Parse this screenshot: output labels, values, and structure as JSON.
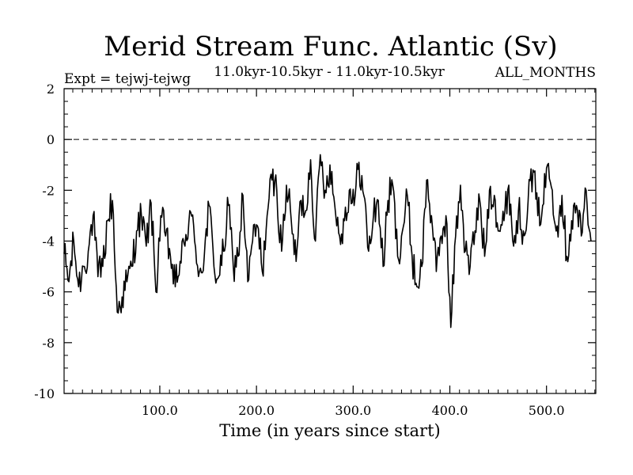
{
  "chart_data": {
    "type": "line",
    "title": "Merid Stream Func. Atlantic (Sv)",
    "subtitle": "11.0kyr-10.5kyr - 11.0kyr-10.5kyr",
    "left_label": "Expt = tejwj-tejwg",
    "right_label": "ALL_MONTHS",
    "xlabel": "Time (in years since start)",
    "ylabel": "",
    "xlim": [
      1,
      551
    ],
    "ylim": [
      -10,
      2
    ],
    "xticks": [
      100,
      200,
      300,
      400,
      500
    ],
    "xtick_labels": [
      "100.0",
      "200.0",
      "300.0",
      "400.0",
      "500.0"
    ],
    "yticks": [
      -10,
      -8,
      -6,
      -4,
      -2,
      0,
      2
    ],
    "ytick_labels": [
      "-10",
      "-8",
      "-6",
      "-4",
      "-2",
      "0",
      "2"
    ],
    "zero_line": 0,
    "series": [
      {
        "name": "tejwj-tejwg",
        "color": "#000000",
        "x_start": 1,
        "x_step": 5,
        "values": [
          -4.5,
          -5.6,
          -4.0,
          -5.8,
          -5.0,
          -4.4,
          -3.0,
          -5.4,
          -5.0,
          -3.2,
          -2.4,
          -6.8,
          -6.2,
          -5.6,
          -5.0,
          -3.6,
          -3.0,
          -4.2,
          -2.5,
          -6.0,
          -3.0,
          -3.8,
          -4.6,
          -5.8,
          -4.8,
          -4.2,
          -2.8,
          -4.0,
          -5.2,
          -4.6,
          -2.6,
          -5.0,
          -5.4,
          -4.4,
          -2.6,
          -5.0,
          -4.6,
          -2.2,
          -5.6,
          -4.0,
          -3.4,
          -5.2,
          -3.0,
          -1.6,
          -2.0,
          -4.4,
          -1.8,
          -3.2,
          -4.8,
          -2.4,
          -2.8,
          -0.8,
          -4.0,
          -0.6,
          -2.0,
          -1.0,
          -2.6,
          -3.8,
          -3.2,
          -2.0,
          -2.6,
          -0.9,
          -2.2,
          -4.4,
          -3.0,
          -2.4,
          -5.0,
          -2.4,
          -1.8,
          -4.6,
          -3.6,
          -2.2,
          -4.6,
          -5.8,
          -5.0,
          -1.6,
          -3.0,
          -5.2,
          -3.8,
          -3.0,
          -7.4,
          -3.8,
          -1.8,
          -4.4,
          -5.0,
          -3.6,
          -2.4,
          -4.6,
          -2.0,
          -2.2,
          -3.6,
          -3.2,
          -1.8,
          -4.2,
          -2.8,
          -3.6,
          -2.4,
          -1.2,
          -3.0,
          -2.6,
          -1.0,
          -2.0,
          -3.4,
          -2.2,
          -4.6,
          -3.2,
          -2.6,
          -3.8,
          -2.0,
          -4.0
        ]
      }
    ]
  }
}
